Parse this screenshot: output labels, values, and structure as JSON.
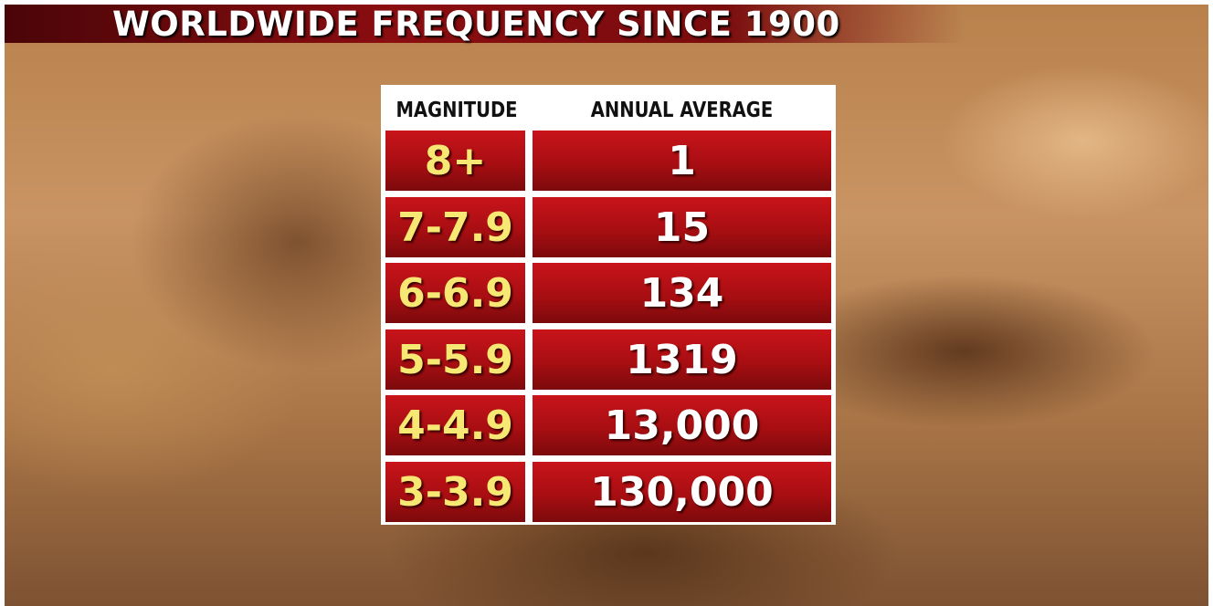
{
  "header": {
    "title": "WORLDWIDE FREQUENCY SINCE 1900"
  },
  "table": {
    "columns": [
      "MAGNITUDE",
      "ANNUAL AVERAGE"
    ],
    "rows": [
      [
        "8+",
        "1"
      ],
      [
        "7-7.9",
        "15"
      ],
      [
        "6-6.9",
        "134"
      ],
      [
        "5-5.9",
        "1319"
      ],
      [
        "4-4.9",
        "13,000"
      ],
      [
        "3-3.9",
        "130,000"
      ]
    ]
  }
}
